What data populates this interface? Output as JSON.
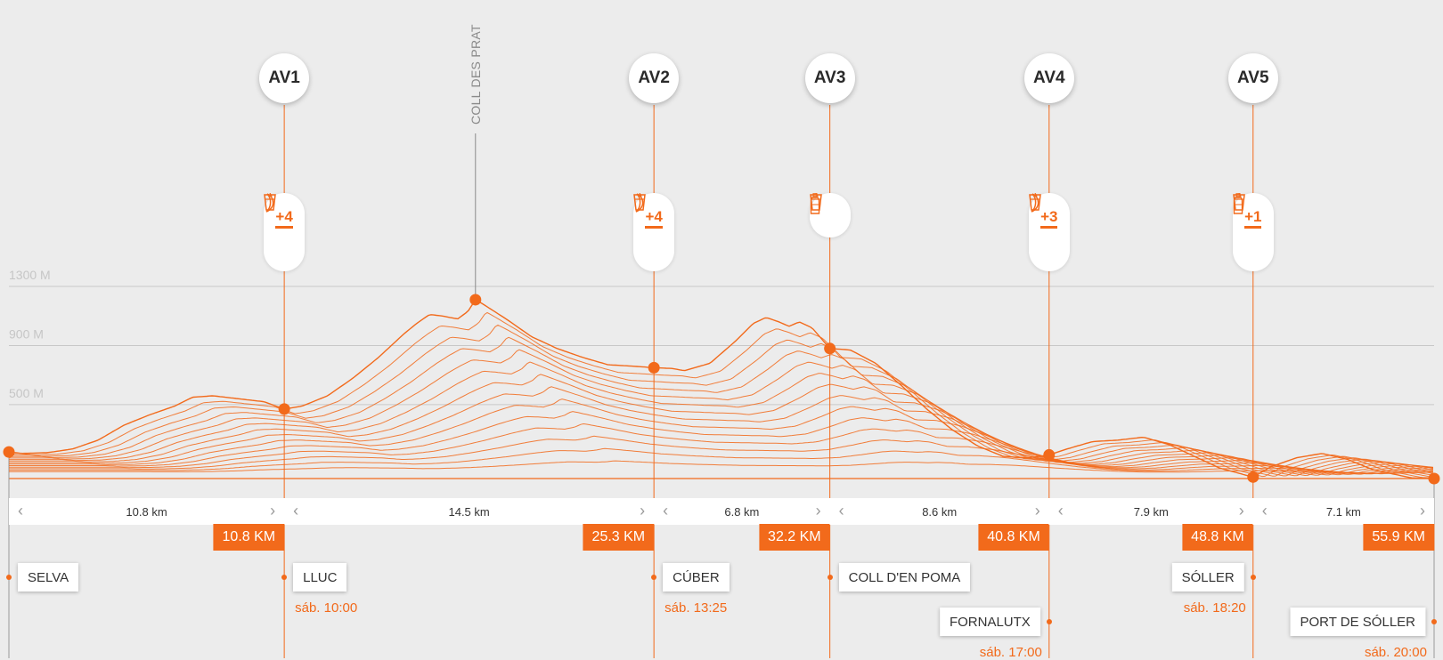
{
  "chart_data": {
    "type": "area",
    "title": "",
    "xlabel": "",
    "ylabel": "",
    "x_unit": "km",
    "xlim": [
      0,
      55.9
    ],
    "ylim": [
      0,
      1400
    ],
    "y_ticks": [
      {
        "value": 1300,
        "label": "1300 M"
      },
      {
        "value": 900,
        "label": "900 M"
      },
      {
        "value": 500,
        "label": "500 M"
      }
    ],
    "grid": true,
    "profile": [
      [
        0,
        180
      ],
      [
        0.5,
        170
      ],
      [
        1.5,
        175
      ],
      [
        2.5,
        200
      ],
      [
        3.5,
        260
      ],
      [
        4.5,
        360
      ],
      [
        5.5,
        430
      ],
      [
        6.5,
        490
      ],
      [
        7.2,
        550
      ],
      [
        8,
        560
      ],
      [
        9,
        540
      ],
      [
        10,
        520
      ],
      [
        10.8,
        470
      ],
      [
        11.5,
        490
      ],
      [
        12.5,
        560
      ],
      [
        13.5,
        680
      ],
      [
        14.5,
        820
      ],
      [
        15.5,
        980
      ],
      [
        16,
        1050
      ],
      [
        16.5,
        1110
      ],
      [
        17,
        1100
      ],
      [
        17.6,
        1080
      ],
      [
        18,
        1130
      ],
      [
        18.3,
        1210
      ],
      [
        18.6,
        1180
      ],
      [
        19.5,
        1080
      ],
      [
        20.5,
        960
      ],
      [
        21.5,
        880
      ],
      [
        22.5,
        820
      ],
      [
        23.5,
        770
      ],
      [
        24.5,
        760
      ],
      [
        25.3,
        750
      ],
      [
        26,
        745
      ],
      [
        26.5,
        730
      ],
      [
        27.5,
        780
      ],
      [
        28.5,
        930
      ],
      [
        29.2,
        1050
      ],
      [
        29.7,
        1090
      ],
      [
        30.2,
        1060
      ],
      [
        30.6,
        1030
      ],
      [
        31,
        1060
      ],
      [
        31.5,
        1020
      ],
      [
        32.2,
        880
      ],
      [
        33,
        870
      ],
      [
        34,
        780
      ],
      [
        35,
        630
      ],
      [
        36,
        470
      ],
      [
        37,
        330
      ],
      [
        38,
        220
      ],
      [
        39,
        150
      ],
      [
        40,
        140
      ],
      [
        40.8,
        160
      ],
      [
        41.5,
        200
      ],
      [
        42.5,
        250
      ],
      [
        43.5,
        260
      ],
      [
        44.5,
        280
      ],
      [
        45.5,
        230
      ],
      [
        46.5,
        150
      ],
      [
        47.5,
        70
      ],
      [
        48.8,
        10
      ],
      [
        49.5,
        80
      ],
      [
        50.5,
        140
      ],
      [
        51.5,
        170
      ],
      [
        52.5,
        130
      ],
      [
        53.5,
        60
      ],
      [
        55,
        5
      ],
      [
        55.9,
        0
      ]
    ],
    "peaks": [
      {
        "label": "COLL DES PRAT",
        "x": 18.3,
        "elevation": 1210
      }
    ],
    "aid_stations": [
      {
        "label": "AV1",
        "x": 10.8,
        "elevation": 470,
        "supplies": [
          "drink",
          "food"
        ],
        "count": "+4"
      },
      {
        "label": "AV2",
        "x": 25.3,
        "elevation": 750,
        "supplies": [
          "drink",
          "food"
        ],
        "count": "+4"
      },
      {
        "label": "AV3",
        "x": 32.2,
        "elevation": 880,
        "supplies": [
          "drink",
          "water"
        ],
        "count": ""
      },
      {
        "label": "AV4",
        "x": 40.8,
        "elevation": 160,
        "supplies": [
          "drink",
          "food"
        ],
        "count": "+3"
      },
      {
        "label": "AV5",
        "x": 48.8,
        "elevation": 10,
        "supplies": [
          "drink",
          "water"
        ],
        "count": "+1"
      }
    ],
    "markers": [
      {
        "x": 0,
        "elevation": 180
      },
      {
        "x": 55.9,
        "elevation": 0
      }
    ],
    "segments": [
      {
        "from": 0,
        "to": 10.8,
        "label": "10.8 km"
      },
      {
        "from": 10.8,
        "to": 25.3,
        "label": "14.5 km"
      },
      {
        "from": 25.3,
        "to": 32.2,
        "label": "6.8 km"
      },
      {
        "from": 32.2,
        "to": 40.8,
        "label": "8.6 km"
      },
      {
        "from": 40.8,
        "to": 48.8,
        "label": "7.9 km"
      },
      {
        "from": 48.8,
        "to": 55.9,
        "label": "7.1 km"
      }
    ],
    "cumulative": [
      {
        "x": 10.8,
        "label": "10.8 KM"
      },
      {
        "x": 25.3,
        "label": "25.3 KM"
      },
      {
        "x": 32.2,
        "label": "32.2 KM"
      },
      {
        "x": 40.8,
        "label": "40.8 KM"
      },
      {
        "x": 48.8,
        "label": "48.8 KM"
      },
      {
        "x": 55.9,
        "label": "55.9 KM"
      }
    ],
    "places": [
      {
        "x": 0,
        "name": "SELVA",
        "time": "",
        "side": "right",
        "row": 1
      },
      {
        "x": 10.8,
        "name": "LLUC",
        "time": "sáb. 10:00",
        "side": "right",
        "row": 1
      },
      {
        "x": 25.3,
        "name": "CÚBER",
        "time": "sáb. 13:25",
        "side": "right",
        "row": 1
      },
      {
        "x": 32.2,
        "name": "COLL D'EN POMA",
        "time": "",
        "side": "right",
        "row": 1
      },
      {
        "x": 40.8,
        "name": "FORNALUTX",
        "time": "sáb. 17:00",
        "side": "left",
        "row": 2
      },
      {
        "x": 48.8,
        "name": "SÓLLER",
        "time": "sáb. 18:20",
        "side": "left",
        "row": 1
      },
      {
        "x": 55.9,
        "name": "PORT DE SÓLLER",
        "time": "sáb. 20:00",
        "side": "left",
        "row": 2
      }
    ],
    "colors": {
      "accent": "#f26a1b",
      "background": "#ececec",
      "grid": "#c8c8c8",
      "text": "#2a2a2a"
    }
  }
}
